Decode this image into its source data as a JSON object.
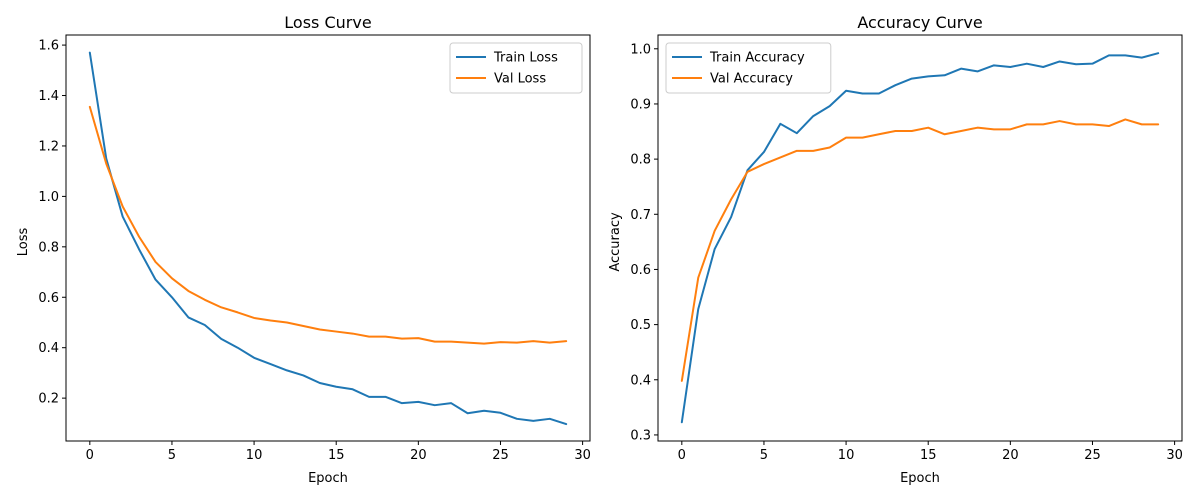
{
  "chart_data": [
    {
      "type": "line",
      "title": "Loss Curve",
      "xlabel": "Epoch",
      "ylabel": "Loss",
      "xlim": [
        -1.45,
        30.45
      ],
      "ylim": [
        0.03,
        1.64
      ],
      "xticks": [
        0,
        5,
        10,
        15,
        20,
        25,
        30
      ],
      "yticks": [
        0.2,
        0.4,
        0.6,
        0.8,
        1.0,
        1.2,
        1.4,
        1.6
      ],
      "ytick_decimals": 1,
      "legend_position": "upper right",
      "x": [
        0,
        1,
        2,
        3,
        4,
        5,
        6,
        7,
        8,
        9,
        10,
        11,
        12,
        13,
        14,
        15,
        16,
        17,
        18,
        19,
        20,
        21,
        22,
        23,
        24,
        25,
        26,
        27,
        28,
        29
      ],
      "series": [
        {
          "name": "Train Loss",
          "color": "#1f77b4",
          "values": [
            1.57,
            1.15,
            0.92,
            0.79,
            0.67,
            0.6,
            0.52,
            0.49,
            0.435,
            0.4,
            0.36,
            0.335,
            0.31,
            0.29,
            0.26,
            0.245,
            0.235,
            0.205,
            0.205,
            0.18,
            0.185,
            0.172,
            0.18,
            0.14,
            0.15,
            0.142,
            0.118,
            0.11,
            0.118,
            0.097
          ]
        },
        {
          "name": "Val Loss",
          "color": "#ff7f0e",
          "values": [
            1.355,
            1.13,
            0.96,
            0.84,
            0.74,
            0.675,
            0.625,
            0.59,
            0.56,
            0.54,
            0.518,
            0.508,
            0.5,
            0.486,
            0.472,
            0.464,
            0.456,
            0.444,
            0.444,
            0.436,
            0.438,
            0.424,
            0.424,
            0.42,
            0.416,
            0.422,
            0.42,
            0.426,
            0.42,
            0.426
          ]
        }
      ]
    },
    {
      "type": "line",
      "title": "Accuracy Curve",
      "xlabel": "Epoch",
      "ylabel": "Accuracy",
      "xlim": [
        -1.45,
        30.45
      ],
      "ylim": [
        0.289,
        1.025
      ],
      "xticks": [
        0,
        5,
        10,
        15,
        20,
        25,
        30
      ],
      "yticks": [
        0.3,
        0.4,
        0.5,
        0.6,
        0.7,
        0.8,
        0.9,
        1.0
      ],
      "ytick_decimals": 1,
      "legend_position": "upper left",
      "x": [
        0,
        1,
        2,
        3,
        4,
        5,
        6,
        7,
        8,
        9,
        10,
        11,
        12,
        13,
        14,
        15,
        16,
        17,
        18,
        19,
        20,
        21,
        22,
        23,
        24,
        25,
        26,
        27,
        28,
        29
      ],
      "series": [
        {
          "name": "Train Accuracy",
          "color": "#1f77b4",
          "values": [
            0.323,
            0.528,
            0.637,
            0.695,
            0.78,
            0.813,
            0.864,
            0.847,
            0.878,
            0.896,
            0.924,
            0.919,
            0.919,
            0.934,
            0.946,
            0.95,
            0.952,
            0.964,
            0.959,
            0.97,
            0.967,
            0.973,
            0.967,
            0.977,
            0.972,
            0.973,
            0.988,
            0.988,
            0.984,
            0.992
          ]
        },
        {
          "name": "Val Accuracy",
          "color": "#ff7f0e",
          "values": [
            0.398,
            0.585,
            0.67,
            0.727,
            0.777,
            0.791,
            0.803,
            0.815,
            0.815,
            0.821,
            0.839,
            0.839,
            0.845,
            0.851,
            0.851,
            0.857,
            0.845,
            0.851,
            0.857,
            0.854,
            0.854,
            0.863,
            0.863,
            0.869,
            0.863,
            0.863,
            0.86,
            0.872,
            0.863,
            0.863
          ]
        }
      ]
    }
  ]
}
